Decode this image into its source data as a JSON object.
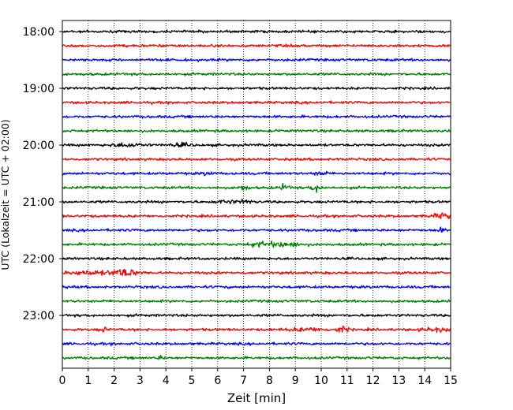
{
  "chart_data": {
    "type": "line",
    "title": "",
    "xlabel": "Zeit  [min]",
    "ylabel": "UTC (Lokalzeit = UTC + 02:00)",
    "xlim": [
      0,
      15
    ],
    "x_ticks": [
      "0",
      "1",
      "2",
      "3",
      "4",
      "5",
      "6",
      "7",
      "8",
      "9",
      "10",
      "11",
      "12",
      "13",
      "14",
      "15"
    ],
    "y_ticks": [
      "18:00",
      "19:00",
      "20:00",
      "21:00",
      "22:00",
      "23:00"
    ],
    "grid": "vertical dotted",
    "rows_per_hour": 4,
    "row_interval_min": 15,
    "start_time": "18:00",
    "line_colors": [
      "#000000",
      "#ff0000",
      "#0000ff",
      "#008000"
    ],
    "rows": [
      {
        "time": "18:00",
        "color": "#000000"
      },
      {
        "time": "18:15",
        "color": "#ff0000"
      },
      {
        "time": "18:30",
        "color": "#0000ff"
      },
      {
        "time": "18:45",
        "color": "#008000"
      },
      {
        "time": "19:00",
        "color": "#000000"
      },
      {
        "time": "19:15",
        "color": "#ff0000"
      },
      {
        "time": "19:30",
        "color": "#0000ff"
      },
      {
        "time": "19:45",
        "color": "#008000"
      },
      {
        "time": "20:00",
        "color": "#000000"
      },
      {
        "time": "20:15",
        "color": "#ff0000"
      },
      {
        "time": "20:30",
        "color": "#0000ff"
      },
      {
        "time": "20:45",
        "color": "#008000"
      },
      {
        "time": "21:00",
        "color": "#000000"
      },
      {
        "time": "21:15",
        "color": "#ff0000"
      },
      {
        "time": "21:30",
        "color": "#0000ff"
      },
      {
        "time": "21:45",
        "color": "#008000"
      },
      {
        "time": "22:00",
        "color": "#000000"
      },
      {
        "time": "22:15",
        "color": "#ff0000"
      },
      {
        "time": "22:30",
        "color": "#0000ff"
      },
      {
        "time": "22:45",
        "color": "#008000"
      },
      {
        "time": "23:00",
        "color": "#000000"
      },
      {
        "time": "23:15",
        "color": "#ff0000"
      },
      {
        "time": "23:30",
        "color": "#0000ff"
      },
      {
        "time": "23:45",
        "color": "#008000"
      }
    ]
  }
}
